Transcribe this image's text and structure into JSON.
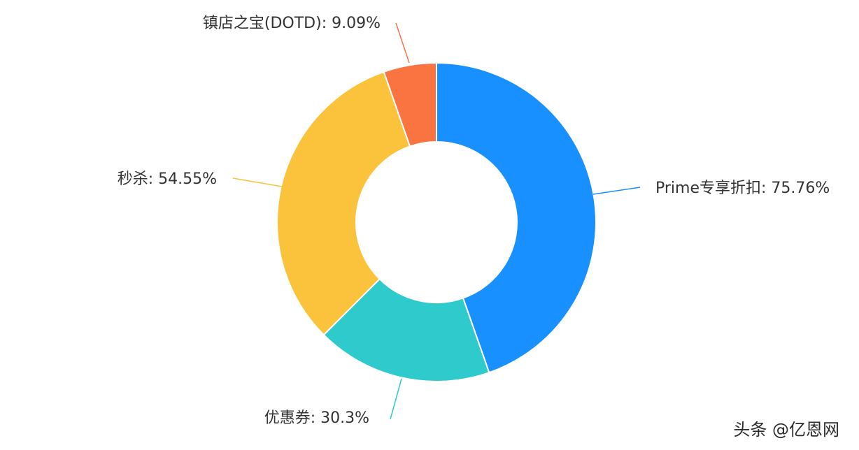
{
  "chart_data": {
    "type": "pie",
    "donut": true,
    "slices": [
      {
        "label": "Prime专享折扣: 75.76%",
        "value": 75.76,
        "color": "#1890ff"
      },
      {
        "label": "优惠券: 30.3%",
        "value": 30.3,
        "color": "#2fcacb"
      },
      {
        "label": "秒杀: 54.55%",
        "value": 54.55,
        "color": "#fbc23b"
      },
      {
        "label": "镇店之宝(DOTD): 9.09%",
        "value": 9.09,
        "color": "#fa7441"
      }
    ],
    "legend": "none"
  },
  "watermark": "头条 @亿恩网"
}
